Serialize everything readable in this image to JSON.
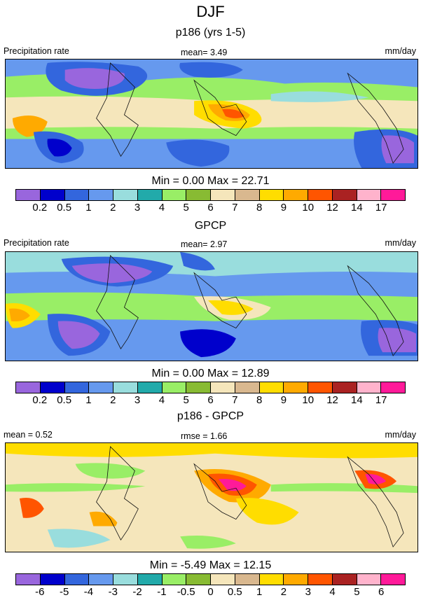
{
  "title": "DJF",
  "panels": [
    {
      "id": "model",
      "title": "p186 (yrs 1-5)",
      "left_label": "Precipitation rate",
      "center_label": "mean=   3.49",
      "right_label": "mm/day",
      "min_max": "Min =   0.00 Max =  22.71",
      "colorbar_labels": [
        "0.2",
        "0.5",
        "1",
        "2",
        "3",
        "4",
        "5",
        "6",
        "7",
        "8",
        "9",
        "10",
        "12",
        "14",
        "17"
      ]
    },
    {
      "id": "obs",
      "title": "GPCP",
      "left_label": "Precipitation rate",
      "center_label": "mean=   2.97",
      "right_label": "mm/day",
      "min_max": "Min =   0.00 Max =  12.89",
      "colorbar_labels": [
        "0.2",
        "0.5",
        "1",
        "2",
        "3",
        "4",
        "5",
        "6",
        "7",
        "8",
        "9",
        "10",
        "12",
        "14",
        "17"
      ]
    },
    {
      "id": "diff",
      "title": "p186 - GPCP",
      "left_label": "mean =    0.52",
      "center_label": "rmse =   1.66",
      "right_label": "mm/day",
      "min_max": "Min =  -5.49 Max =  12.15",
      "colorbar_labels": [
        "-6",
        "-5",
        "-4",
        "-3",
        "-2",
        "-1",
        "-0.5",
        "0",
        "0.5",
        "1",
        "2",
        "3",
        "4",
        "5",
        "6"
      ]
    }
  ],
  "colors": {
    "colorbar": [
      "#9966dd",
      "#0000cc",
      "#3366dd",
      "#6699ee",
      "#99dddd",
      "#22aaaa",
      "#99ee66",
      "#88bb33",
      "#f5e6bb",
      "#d9b88f",
      "#ffdd00",
      "#ffaa00",
      "#ff5500",
      "#aa2222",
      "#ffb3cc",
      "#ff1a99"
    ],
    "coast": "#111111"
  }
}
